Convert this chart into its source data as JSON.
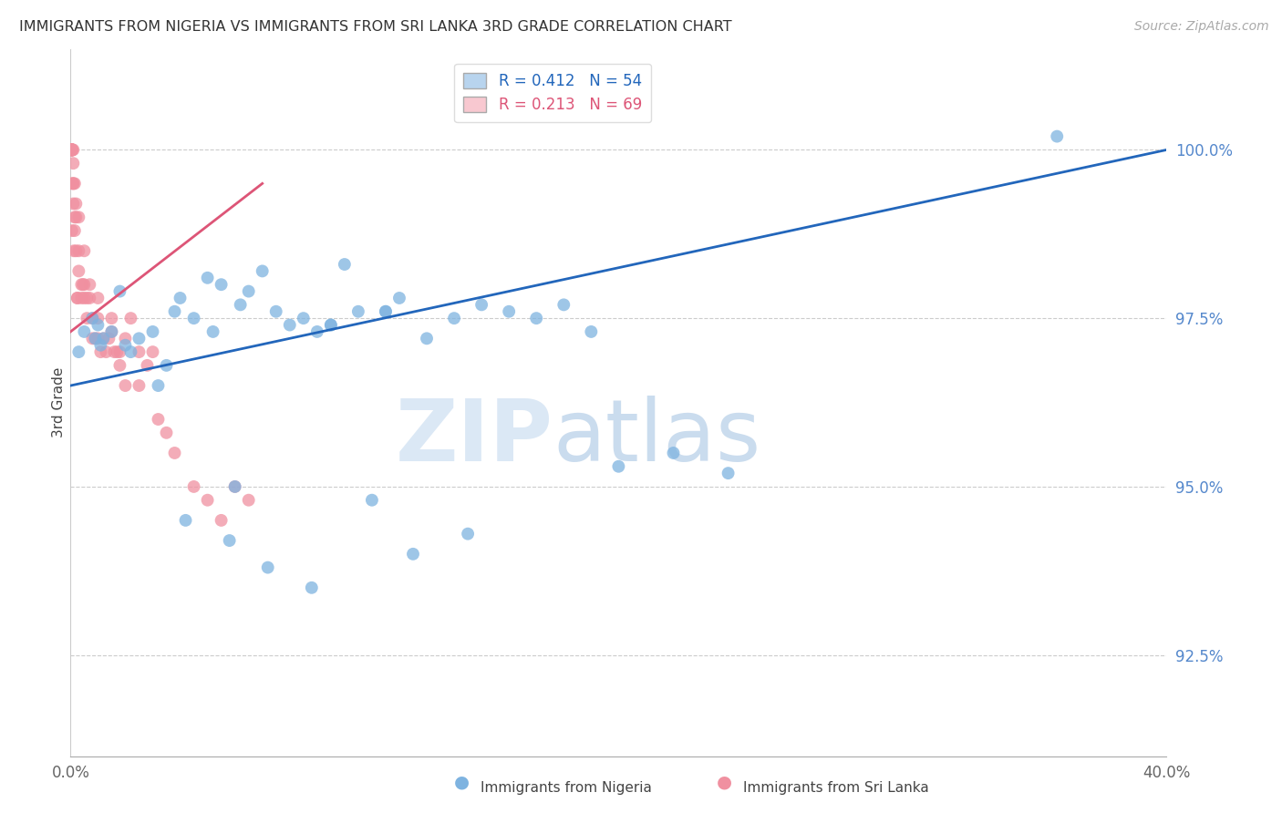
{
  "title": "IMMIGRANTS FROM NIGERIA VS IMMIGRANTS FROM SRI LANKA 3RD GRADE CORRELATION CHART",
  "source": "Source: ZipAtlas.com",
  "ylabel": "3rd Grade",
  "xlim": [
    0.0,
    40.0
  ],
  "ylim": [
    91.0,
    101.5
  ],
  "yticks": [
    92.5,
    95.0,
    97.5,
    100.0
  ],
  "ytick_labels": [
    "92.5%",
    "95.0%",
    "97.5%",
    "100.0%"
  ],
  "xticks": [
    0.0,
    5.0,
    10.0,
    15.0,
    20.0,
    25.0,
    30.0,
    35.0,
    40.0
  ],
  "xtick_labels": [
    "0.0%",
    "",
    "",
    "",
    "",
    "",
    "",
    "",
    "40.0%"
  ],
  "nigeria_color": "#7EB3E0",
  "srilanka_color": "#F090A0",
  "nigeria_R": 0.412,
  "nigeria_N": 54,
  "srilanka_R": 0.213,
  "srilanka_N": 69,
  "nigeria_line_color": "#2266BB",
  "srilanka_line_color": "#DD5577",
  "nigeria_x": [
    0.3,
    0.5,
    0.8,
    1.0,
    1.2,
    1.5,
    2.0,
    2.5,
    3.0,
    3.5,
    4.0,
    4.5,
    5.0,
    5.5,
    6.0,
    6.5,
    7.0,
    7.5,
    8.0,
    8.5,
    9.0,
    9.5,
    10.0,
    10.5,
    11.0,
    11.5,
    12.0,
    12.5,
    13.0,
    14.0,
    15.0,
    16.0,
    17.0,
    18.0,
    19.0,
    20.0,
    22.0,
    24.0,
    36.0,
    1.8,
    2.2,
    3.2,
    4.2,
    5.2,
    6.2,
    7.2,
    8.8,
    3.8,
    5.8,
    9.5,
    11.5,
    14.5,
    1.1,
    0.9
  ],
  "nigeria_y": [
    97.0,
    97.3,
    97.5,
    97.4,
    97.2,
    97.3,
    97.1,
    97.2,
    97.3,
    96.8,
    97.8,
    97.5,
    98.1,
    98.0,
    95.0,
    97.9,
    98.2,
    97.6,
    97.4,
    97.5,
    97.3,
    97.4,
    98.3,
    97.6,
    94.8,
    97.6,
    97.8,
    94.0,
    97.2,
    97.5,
    97.7,
    97.6,
    97.5,
    97.7,
    97.3,
    95.3,
    95.5,
    95.2,
    100.2,
    97.9,
    97.0,
    96.5,
    94.5,
    97.3,
    97.7,
    93.8,
    93.5,
    97.6,
    94.2,
    97.4,
    97.6,
    94.3,
    97.1,
    97.2
  ],
  "srilanka_x": [
    0.05,
    0.05,
    0.05,
    0.05,
    0.05,
    0.05,
    0.05,
    0.05,
    0.05,
    0.05,
    0.1,
    0.1,
    0.1,
    0.1,
    0.1,
    0.15,
    0.15,
    0.15,
    0.2,
    0.2,
    0.2,
    0.25,
    0.3,
    0.3,
    0.3,
    0.4,
    0.4,
    0.5,
    0.5,
    0.5,
    0.6,
    0.6,
    0.7,
    0.7,
    0.8,
    0.8,
    0.9,
    1.0,
    1.0,
    1.0,
    1.1,
    1.2,
    1.3,
    1.4,
    1.5,
    1.5,
    1.6,
    1.7,
    1.8,
    1.8,
    2.0,
    2.0,
    2.2,
    2.5,
    2.5,
    2.8,
    3.0,
    3.2,
    3.5,
    3.8,
    4.5,
    5.0,
    5.5,
    6.0,
    6.5,
    0.05,
    0.12,
    0.25,
    0.45
  ],
  "srilanka_y": [
    100.0,
    100.0,
    100.0,
    100.0,
    100.0,
    100.0,
    100.0,
    100.0,
    100.0,
    99.5,
    100.0,
    99.8,
    99.5,
    99.2,
    99.5,
    99.0,
    99.5,
    98.8,
    99.2,
    98.5,
    99.0,
    97.8,
    98.5,
    99.0,
    98.2,
    98.0,
    97.8,
    97.8,
    98.5,
    98.0,
    97.5,
    97.8,
    97.8,
    98.0,
    97.5,
    97.2,
    97.2,
    97.5,
    97.8,
    97.2,
    97.0,
    97.2,
    97.0,
    97.2,
    97.5,
    97.3,
    97.0,
    97.0,
    97.0,
    96.8,
    97.2,
    96.5,
    97.5,
    97.0,
    96.5,
    96.8,
    97.0,
    96.0,
    95.8,
    95.5,
    95.0,
    94.8,
    94.5,
    95.0,
    94.8,
    98.8,
    98.5,
    97.8,
    98.0
  ],
  "watermark_zip": "ZIP",
  "watermark_atlas": "atlas",
  "legend_box_color_nigeria": "#B8D4EE",
  "legend_box_color_srilanka": "#F8C8D0",
  "title_color": "#333333",
  "axis_label_color": "#444444",
  "tick_color_right": "#5588CC",
  "grid_color": "#CCCCCC",
  "background_color": "#FFFFFF"
}
